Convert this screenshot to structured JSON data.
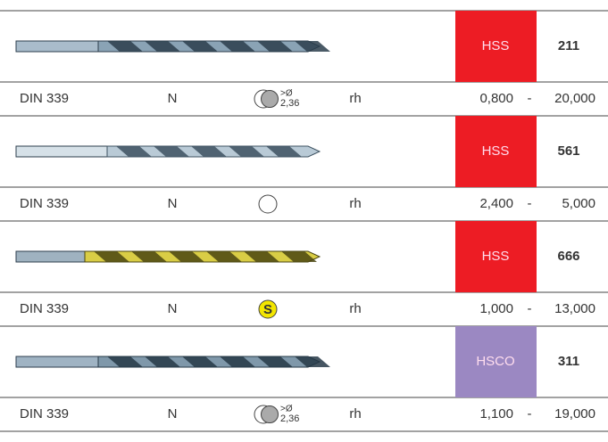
{
  "products": [
    {
      "material": "HSS",
      "code": "211",
      "standard": "DIN 339",
      "type": "N",
      "icon_label": ">Ø",
      "icon_sub": "2,36",
      "direction": "rh",
      "range_min": "0,800",
      "range_sep": "-",
      "range_max": "20,000"
    },
    {
      "material": "HSS",
      "code": "561",
      "standard": "DIN 339",
      "type": "N",
      "direction": "rh",
      "range_min": "2,400",
      "range_sep": "-",
      "range_max": "5,000"
    },
    {
      "material": "HSS",
      "code": "666",
      "standard": "DIN 339",
      "type": "N",
      "icon_label": "S",
      "direction": "rh",
      "range_min": "1,000",
      "range_sep": "-",
      "range_max": "13,000"
    },
    {
      "material": "HSCO",
      "code": "311",
      "standard": "DIN 339",
      "type": "N",
      "icon_label": ">Ø",
      "icon_sub": "2,36",
      "direction": "rh",
      "range_min": "1,100",
      "range_sep": "-",
      "range_max": "19,000"
    }
  ]
}
